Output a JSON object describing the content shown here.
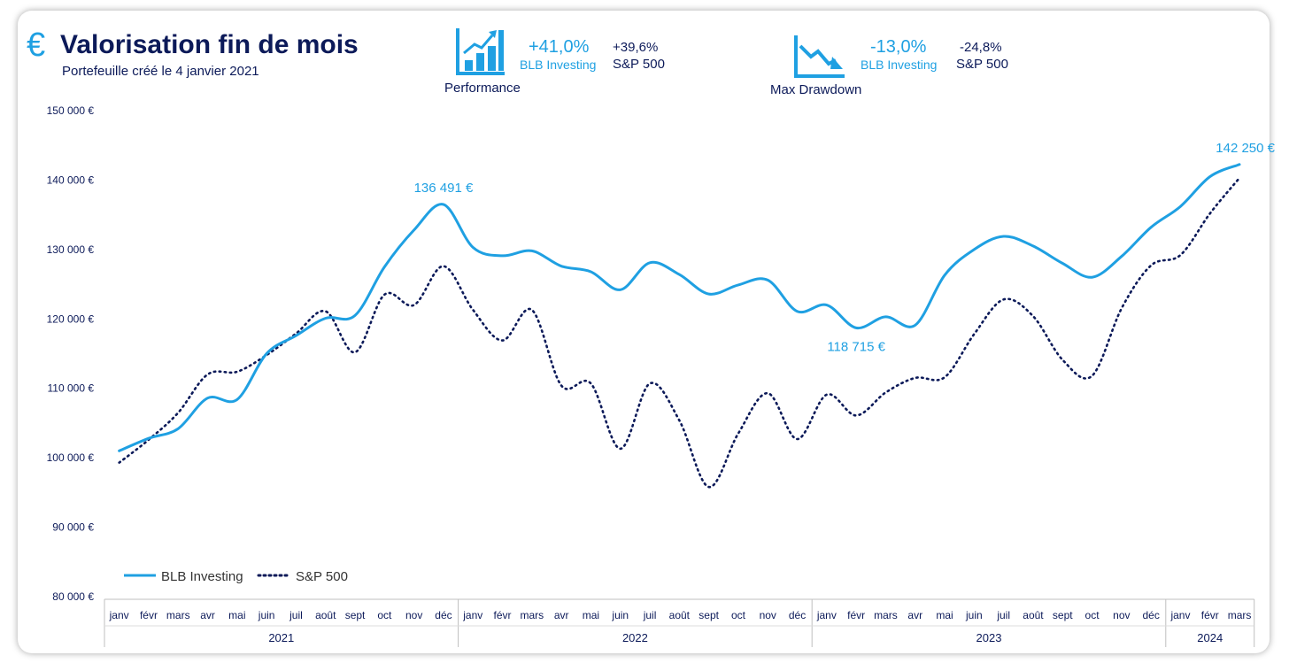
{
  "header": {
    "title": "Valorisation fin de mois",
    "subtitle": "Portefeuille créé le 4 janvier 2021",
    "currency_icon": "euro-icon"
  },
  "kpis": {
    "performance": {
      "icon": "bar-chart-up-icon",
      "value": "+41,0%",
      "value_label": "BLB Investing",
      "bench_value": "+39,6%",
      "bench_label": "S&P 500",
      "caption": "Performance"
    },
    "drawdown": {
      "icon": "line-chart-down-icon",
      "value": "-13,0%",
      "value_label": "BLB Investing",
      "bench_value": "-24,8%",
      "bench_label": "S&P 500",
      "caption": "Max Drawdown"
    }
  },
  "colors": {
    "blb": "#1fa0e2",
    "sp500": "#0c1a59",
    "text": "#0c1a59"
  },
  "chart_data": {
    "type": "line",
    "title": "",
    "xlabel": "",
    "ylabel": "",
    "ylim": [
      80000,
      150000
    ],
    "y_ticks": [
      80000,
      90000,
      100000,
      110000,
      120000,
      130000,
      140000,
      150000
    ],
    "y_tick_labels": [
      "80 000 €",
      "90 000 €",
      "100 000 €",
      "110 000 €",
      "120 000 €",
      "130 000 €",
      "140 000 €",
      "150 000 €"
    ],
    "categories": [
      "janv",
      "févr",
      "mars",
      "avr",
      "mai",
      "juin",
      "juil",
      "août",
      "sept",
      "oct",
      "nov",
      "déc",
      "janv",
      "févr",
      "mars",
      "avr",
      "mai",
      "juin",
      "juil",
      "août",
      "sept",
      "oct",
      "nov",
      "déc",
      "janv",
      "févr",
      "mars",
      "avr",
      "mai",
      "juin",
      "juil",
      "août",
      "sept",
      "oct",
      "nov",
      "déc",
      "janv",
      "févr",
      "mars"
    ],
    "years": [
      {
        "label": "2021",
        "start": 0,
        "count": 12
      },
      {
        "label": "2022",
        "start": 12,
        "count": 12
      },
      {
        "label": "2023",
        "start": 24,
        "count": 12
      },
      {
        "label": "2024",
        "start": 36,
        "count": 3
      }
    ],
    "series": [
      {
        "name": "BLB Investing",
        "style": "solid",
        "values": [
          101000,
          102800,
          104200,
          108600,
          108400,
          115000,
          117600,
          120100,
          120500,
          127500,
          132800,
          136491,
          130300,
          129100,
          129800,
          127600,
          126800,
          124200,
          128100,
          126400,
          123600,
          124900,
          125600,
          121100,
          122000,
          118715,
          120300,
          119100,
          126300,
          130000,
          131900,
          130500,
          128000,
          126000,
          129000,
          133200,
          136200,
          140500,
          142250
        ]
      },
      {
        "name": "S&P 500",
        "style": "dotted",
        "values": [
          99300,
          102600,
          106500,
          112000,
          112400,
          114800,
          117900,
          121100,
          115200,
          123500,
          122000,
          127600,
          121300,
          116900,
          121300,
          110400,
          110700,
          101300,
          110700,
          105400,
          95800,
          103500,
          109300,
          102700,
          109100,
          106100,
          109400,
          111500,
          111600,
          117800,
          122800,
          120400,
          114100,
          111800,
          121500,
          127700,
          129200,
          135200,
          140300
        ]
      }
    ],
    "annotations": [
      {
        "series": 0,
        "index": 11,
        "text": "136 491 €"
      },
      {
        "series": 0,
        "index": 25,
        "text": "118 715 €"
      },
      {
        "series": 0,
        "index": 38,
        "text": "142 250 €"
      }
    ],
    "legend": {
      "position": "bottom-left"
    },
    "grid": false
  }
}
